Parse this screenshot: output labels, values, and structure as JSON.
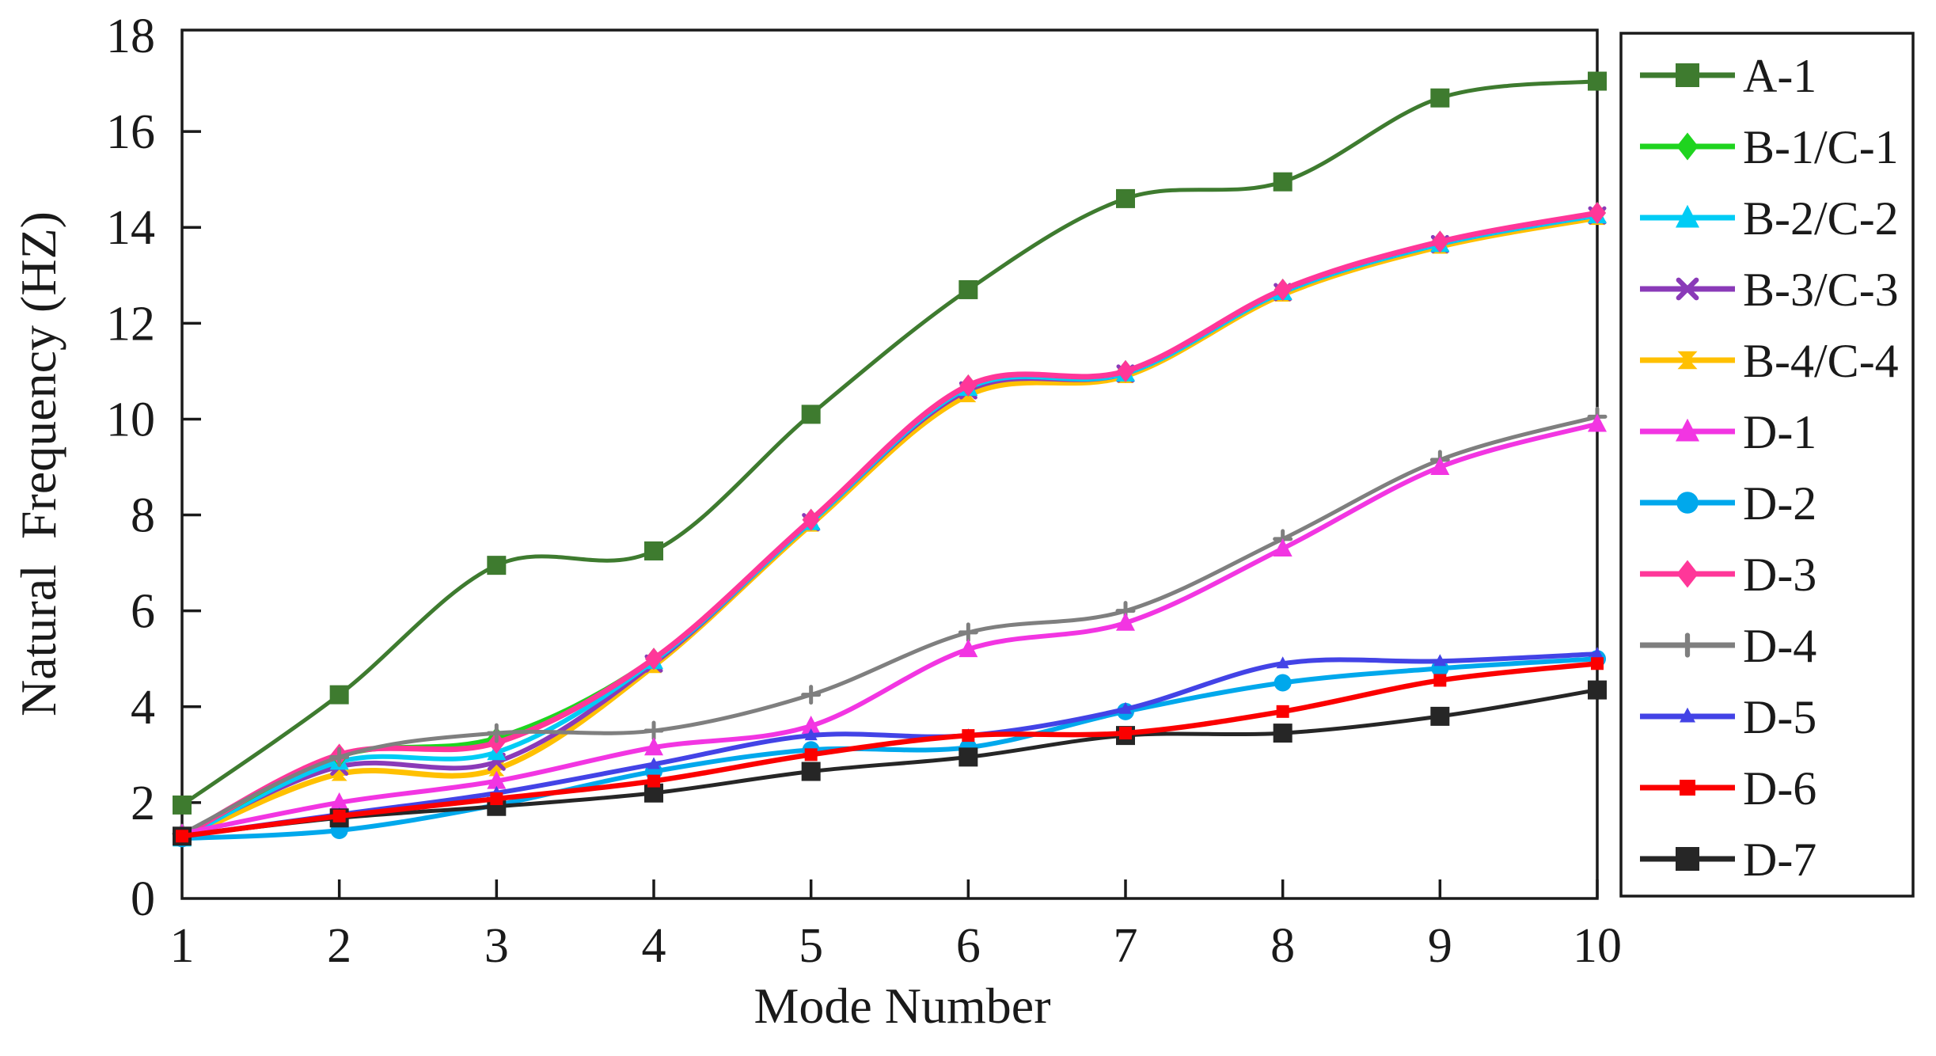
{
  "figure": {
    "background": "#ffffff",
    "axis_color": "#1a1a1a"
  },
  "chart_data": {
    "type": "line",
    "title": "",
    "xlabel": "Mode Number",
    "ylabel": "Natural  Frequency (HZ)",
    "x": [
      1,
      2,
      3,
      4,
      5,
      6,
      7,
      8,
      9,
      10
    ],
    "xlim": [
      1,
      10
    ],
    "ylim": [
      0,
      18
    ],
    "x_ticks": [
      1,
      2,
      3,
      4,
      5,
      6,
      7,
      8,
      9,
      10
    ],
    "y_ticks": [
      0,
      2,
      4,
      6,
      8,
      10,
      12,
      14,
      16,
      18
    ],
    "grid": false,
    "legend_position": "outside-right",
    "series": [
      {
        "name": "A-1",
        "color": "#3E7B2F",
        "marker": "square",
        "values": [
          1.95,
          4.25,
          6.95,
          7.25,
          10.1,
          12.7,
          14.6,
          14.95,
          16.7,
          17.05
        ]
      },
      {
        "name": "B-1/C-1",
        "color": "#1FD41F",
        "marker": "diamond",
        "values": [
          1.3,
          2.97,
          3.35,
          5.0,
          7.9,
          10.7,
          11.0,
          12.7,
          13.7,
          14.3
        ]
      },
      {
        "name": "B-2/C-2",
        "color": "#00CCF5",
        "marker": "triangle",
        "values": [
          1.25,
          2.85,
          3.05,
          4.95,
          7.85,
          10.65,
          10.95,
          12.65,
          13.65,
          14.25
        ]
      },
      {
        "name": "B-3/C-3",
        "color": "#8A3AB8",
        "marker": "xcross",
        "values": [
          1.3,
          2.75,
          2.85,
          4.9,
          7.85,
          10.6,
          10.95,
          12.65,
          13.65,
          14.25
        ]
      },
      {
        "name": "B-4/C-4",
        "color": "#FFC000",
        "marker": "bowtie",
        "values": [
          1.25,
          2.6,
          2.7,
          4.85,
          7.8,
          10.5,
          10.9,
          12.6,
          13.6,
          14.2
        ]
      },
      {
        "name": "D-1",
        "color": "#F235E2",
        "marker": "triangle",
        "values": [
          1.35,
          2.0,
          2.45,
          3.15,
          3.6,
          5.2,
          5.75,
          7.3,
          9.0,
          9.9
        ]
      },
      {
        "name": "D-2",
        "color": "#00A8EC",
        "marker": "circle",
        "values": [
          1.25,
          1.42,
          1.95,
          2.65,
          3.1,
          3.15,
          3.9,
          4.5,
          4.8,
          5.0
        ]
      },
      {
        "name": "D-3",
        "color": "#FF3799",
        "marker": "diamond",
        "values": [
          1.3,
          3.0,
          3.25,
          5.0,
          7.9,
          10.7,
          11.0,
          12.7,
          13.7,
          14.3
        ]
      },
      {
        "name": "D-4",
        "color": "#7F7F7F",
        "marker": "plus",
        "values": [
          1.35,
          2.95,
          3.45,
          3.5,
          4.25,
          5.55,
          6.0,
          7.5,
          9.15,
          10.05
        ]
      },
      {
        "name": "D-5",
        "color": "#4343E6",
        "marker": "triangle-small",
        "values": [
          1.3,
          1.75,
          2.2,
          2.8,
          3.4,
          3.4,
          3.95,
          4.9,
          4.95,
          5.1
        ]
      },
      {
        "name": "D-6",
        "color": "#FB0000",
        "marker": "square-small",
        "values": [
          1.3,
          1.72,
          2.08,
          2.45,
          3.0,
          3.4,
          3.45,
          3.9,
          4.55,
          4.9
        ]
      },
      {
        "name": "D-7",
        "color": "#262626",
        "marker": "square",
        "values": [
          1.3,
          1.68,
          1.92,
          2.2,
          2.65,
          2.95,
          3.4,
          3.45,
          3.8,
          4.35
        ]
      }
    ]
  }
}
